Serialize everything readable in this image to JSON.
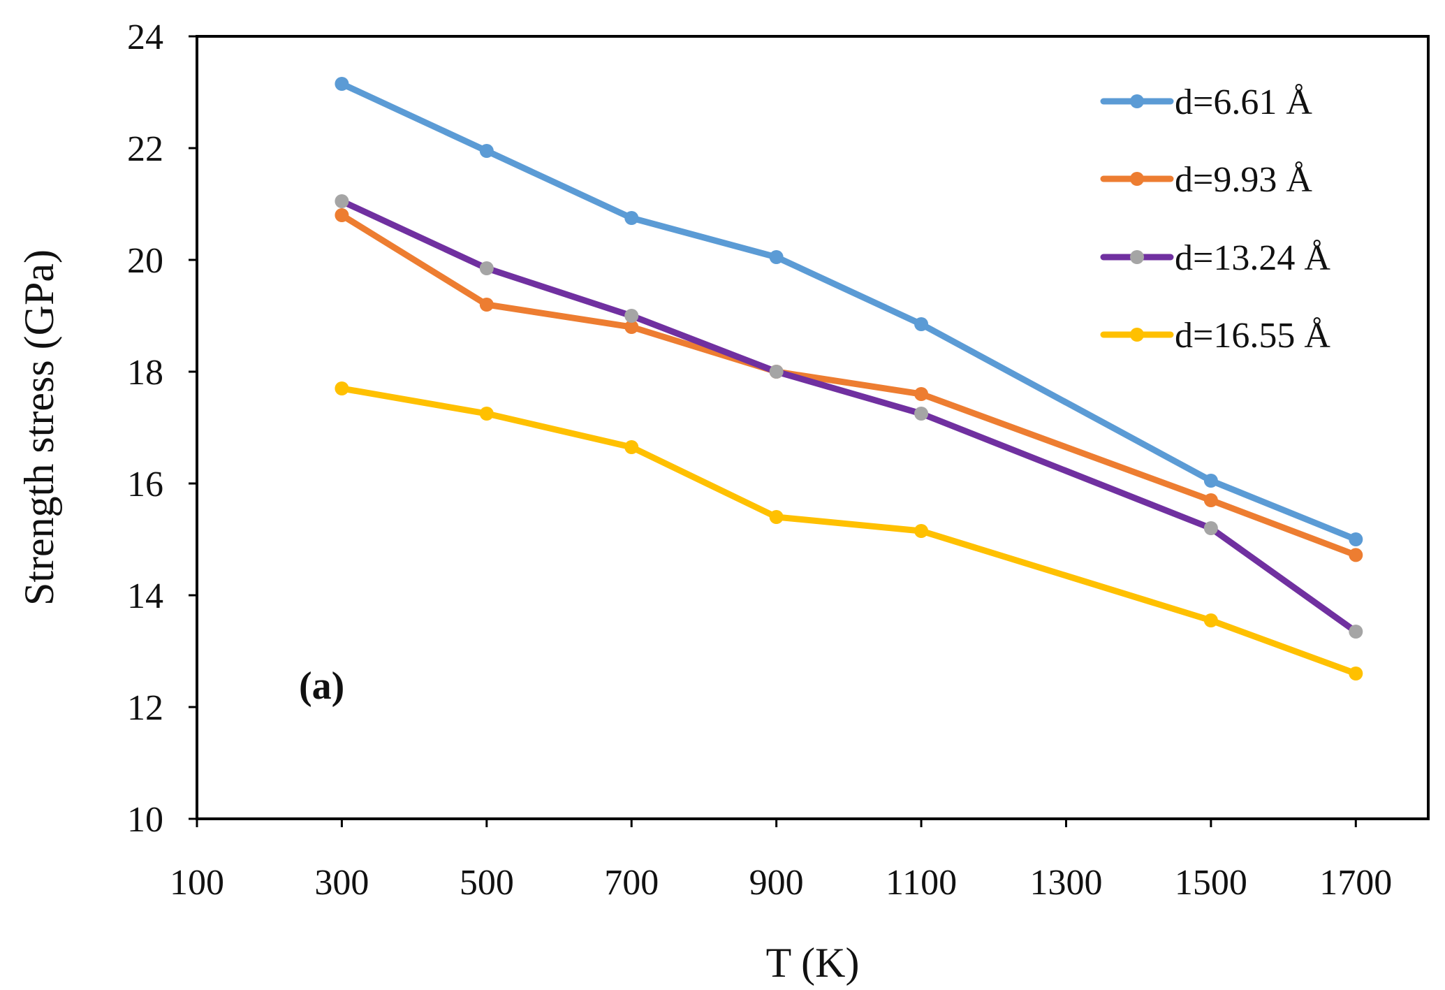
{
  "chart_data": {
    "type": "line",
    "xlabel": "T (K)",
    "ylabel": "Strength stress (GPa)",
    "panel_label": "(a)",
    "xlim": [
      100,
      1800
    ],
    "ylim": [
      10,
      24
    ],
    "xticks": [
      100,
      300,
      500,
      700,
      900,
      1100,
      1300,
      1500,
      1700
    ],
    "yticks": [
      10,
      12,
      14,
      16,
      18,
      20,
      22,
      24
    ],
    "x": [
      300,
      500,
      700,
      900,
      1100,
      1500,
      1700
    ],
    "legend_position": "top-right",
    "grid": false,
    "series": [
      {
        "name": "d=6.61 Å",
        "color": "#5b9bd5",
        "marker_color": "#5b9bd5",
        "values": [
          23.15,
          21.95,
          20.75,
          20.05,
          18.85,
          16.05,
          15.0
        ]
      },
      {
        "name": "d=9.93 Å",
        "color": "#ed7d31",
        "marker_color": "#ed7d31",
        "values": [
          20.8,
          19.2,
          18.8,
          18.0,
          17.6,
          15.7,
          14.72
        ]
      },
      {
        "name": "d=13.24 Å",
        "color": "#7030a0",
        "marker_color": "#a5a5a5",
        "values": [
          21.05,
          19.85,
          19.0,
          18.0,
          17.25,
          15.2,
          13.35
        ]
      },
      {
        "name": "d=16.55 Å",
        "color": "#ffc000",
        "marker_color": "#ffc000",
        "values": [
          17.7,
          17.25,
          16.65,
          15.4,
          15.15,
          13.55,
          12.6
        ]
      }
    ]
  }
}
